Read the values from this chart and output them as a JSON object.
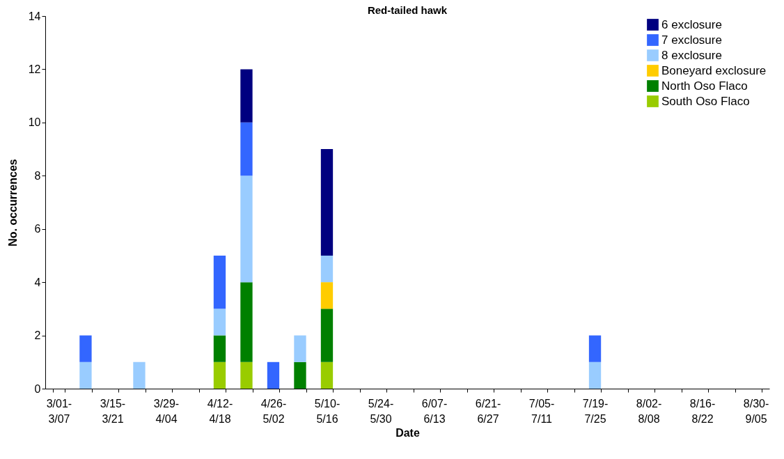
{
  "chart_data": {
    "type": "bar",
    "title": "Red-tailed hawk",
    "xlabel": "Date",
    "ylabel": "No. occurrences",
    "categories": [
      "3/01-3/07",
      null,
      "3/15-3/21",
      null,
      "3/29-4/04",
      null,
      "4/12-4/18",
      null,
      "4/26-5/02",
      null,
      "5/10-5/16",
      null,
      "5/24-5/30",
      null,
      "6/07-6/13",
      null,
      "6/21-6/27",
      null,
      "7/05-7/11",
      null,
      "7/19-7/25",
      null,
      "8/02-8/08",
      null,
      "8/16-8/22",
      null,
      "8/30-9/05"
    ],
    "stacked": true,
    "legend": "top right",
    "grid": false,
    "ylim": [
      0,
      14
    ],
    "yticks": [
      0,
      2,
      4,
      6,
      8,
      10,
      12,
      14
    ],
    "series": [
      {
        "name": "South Oso Flaco",
        "color": "#99cc00",
        "values": [
          0,
          0,
          0,
          0,
          0,
          0,
          1,
          1,
          0,
          0,
          1,
          0,
          0,
          0,
          0,
          0,
          0,
          0,
          0,
          0,
          0,
          0,
          0,
          0,
          0,
          0,
          0
        ]
      },
      {
        "name": "North Oso Flaco",
        "color": "#008000",
        "values": [
          0,
          0,
          0,
          0,
          0,
          0,
          1,
          3,
          0,
          1,
          2,
          0,
          0,
          0,
          0,
          0,
          0,
          0,
          0,
          0,
          0,
          0,
          0,
          0,
          0,
          0,
          0
        ]
      },
      {
        "name": "Boneyard exclosure",
        "color": "#ffcc00",
        "values": [
          0,
          0,
          0,
          0,
          0,
          0,
          0,
          0,
          0,
          0,
          1,
          0,
          0,
          0,
          0,
          0,
          0,
          0,
          0,
          0,
          0,
          0,
          0,
          0,
          0,
          0,
          0
        ]
      },
      {
        "name": "8 exclosure",
        "color": "#99ccff",
        "values": [
          0,
          1,
          0,
          1,
          0,
          0,
          1,
          4,
          0,
          1,
          1,
          0,
          0,
          0,
          0,
          0,
          0,
          0,
          0,
          0,
          1,
          0,
          0,
          0,
          0,
          0,
          0
        ]
      },
      {
        "name": "7 exclosure",
        "color": "#3366ff",
        "values": [
          0,
          1,
          0,
          0,
          0,
          0,
          2,
          2,
          1,
          0,
          0,
          0,
          0,
          0,
          0,
          0,
          0,
          0,
          0,
          0,
          1,
          0,
          0,
          0,
          0,
          0,
          0
        ]
      },
      {
        "name": "6 exclosure",
        "color": "#000080",
        "values": [
          0,
          0,
          0,
          0,
          0,
          0,
          0,
          2,
          0,
          0,
          4,
          0,
          0,
          0,
          0,
          0,
          0,
          0,
          0,
          0,
          0,
          0,
          0,
          0,
          0,
          0,
          0
        ]
      }
    ]
  }
}
